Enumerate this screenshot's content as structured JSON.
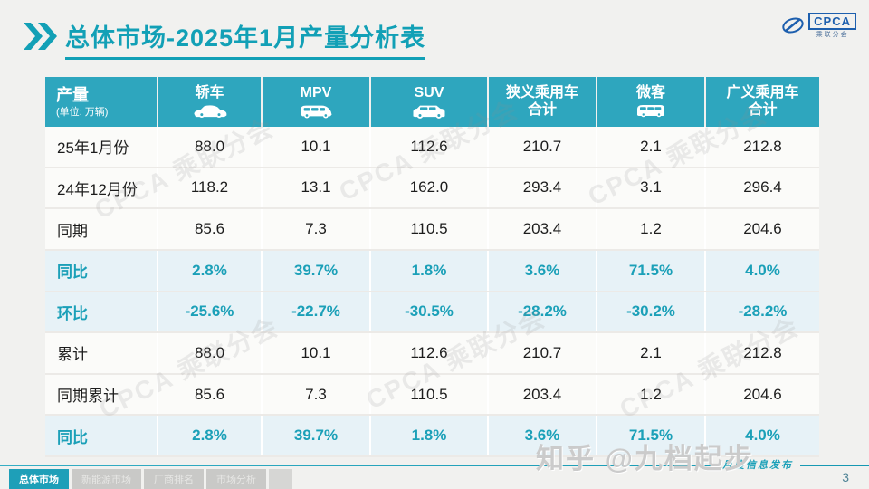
{
  "slide": {
    "title": "总体市场-2025年1月产量分析表",
    "page_number": "3",
    "watermark": "知乎 @九档起步",
    "watermark_logo": "CPCA 乘联分会",
    "ribbon_label": "月度信息发布",
    "logo": {
      "text": "CPCA",
      "subtext": "乘联分会"
    }
  },
  "table": {
    "header": {
      "col0_line1": "产量",
      "col0_line2": "(单位: 万辆)",
      "columns": [
        {
          "id": "sedan",
          "label": "轿车",
          "icon": "sedan-icon"
        },
        {
          "id": "mpv",
          "label": "MPV",
          "icon": "mpv-icon"
        },
        {
          "id": "suv",
          "label": "SUV",
          "icon": "suv-icon"
        },
        {
          "id": "narrow-pv-total",
          "label": "狭义乘用车",
          "label2": "合计",
          "icon": null
        },
        {
          "id": "microvan",
          "label": "微客",
          "icon": "microvan-icon"
        },
        {
          "id": "broad-pv-total",
          "label": "广义乘用车",
          "label2": "合计",
          "icon": null
        }
      ]
    },
    "rows": [
      {
        "label": "25年1月份",
        "type": "data",
        "values": [
          "88.0",
          "10.1",
          "112.6",
          "210.7",
          "2.1",
          "212.8"
        ]
      },
      {
        "label": "24年12月份",
        "type": "data",
        "values": [
          "118.2",
          "13.1",
          "162.0",
          "293.4",
          "3.1",
          "296.4"
        ]
      },
      {
        "label": "同期",
        "type": "data",
        "values": [
          "85.6",
          "7.3",
          "110.5",
          "203.4",
          "1.2",
          "204.6"
        ]
      },
      {
        "label": "同比",
        "type": "ratio",
        "values": [
          "2.8%",
          "39.7%",
          "1.8%",
          "3.6%",
          "71.5%",
          "4.0%"
        ]
      },
      {
        "label": "环比",
        "type": "ratio",
        "values": [
          "-25.6%",
          "-22.7%",
          "-30.5%",
          "-28.2%",
          "-30.2%",
          "-28.2%"
        ]
      },
      {
        "label": "累计",
        "type": "data",
        "values": [
          "88.0",
          "10.1",
          "112.6",
          "210.7",
          "2.1",
          "212.8"
        ]
      },
      {
        "label": "同期累计",
        "type": "data",
        "values": [
          "85.6",
          "7.3",
          "110.5",
          "203.4",
          "1.2",
          "204.6"
        ]
      },
      {
        "label": "同比",
        "type": "ratio",
        "values": [
          "2.8%",
          "39.7%",
          "1.8%",
          "3.6%",
          "71.5%",
          "4.0%"
        ]
      }
    ]
  },
  "chart_data": {
    "type": "table",
    "title": "总体市场-2025年1月产量分析表",
    "unit": "万辆",
    "columns": [
      "轿车",
      "MPV",
      "SUV",
      "狭义乘用车合计",
      "微客",
      "广义乘用车合计"
    ],
    "rows": [
      {
        "label": "25年1月份",
        "values": [
          88.0,
          10.1,
          112.6,
          210.7,
          2.1,
          212.8
        ]
      },
      {
        "label": "24年12月份",
        "values": [
          118.2,
          13.1,
          162.0,
          293.4,
          3.1,
          296.4
        ]
      },
      {
        "label": "同期",
        "values": [
          85.6,
          7.3,
          110.5,
          203.4,
          1.2,
          204.6
        ]
      },
      {
        "label": "同比",
        "values": [
          "2.8%",
          "39.7%",
          "1.8%",
          "3.6%",
          "71.5%",
          "4.0%"
        ]
      },
      {
        "label": "环比",
        "values": [
          "-25.6%",
          "-22.7%",
          "-30.5%",
          "-28.2%",
          "-30.2%",
          "-28.2%"
        ]
      },
      {
        "label": "累计",
        "values": [
          88.0,
          10.1,
          112.6,
          210.7,
          2.1,
          212.8
        ]
      },
      {
        "label": "同期累计",
        "values": [
          85.6,
          7.3,
          110.5,
          203.4,
          1.2,
          204.6
        ]
      },
      {
        "label": "同比",
        "values": [
          "2.8%",
          "39.7%",
          "1.8%",
          "3.6%",
          "71.5%",
          "4.0%"
        ]
      }
    ]
  },
  "footer_tabs": [
    {
      "id": "overall-market",
      "label": "总体市场",
      "active": true
    },
    {
      "id": "nev-market",
      "label": "新能源市场",
      "active": false
    },
    {
      "id": "manufacturer-ranking",
      "label": "厂商排名",
      "active": false
    },
    {
      "id": "market-analysis",
      "label": "市场分析",
      "active": false
    }
  ],
  "colors": {
    "accent_teal": "#12A0B6",
    "header_bg": "#2EA6BE",
    "highlight_row_bg": "#E7F2F7",
    "highlight_text": "#1BA0B8",
    "logo_blue": "#1d5fae"
  }
}
